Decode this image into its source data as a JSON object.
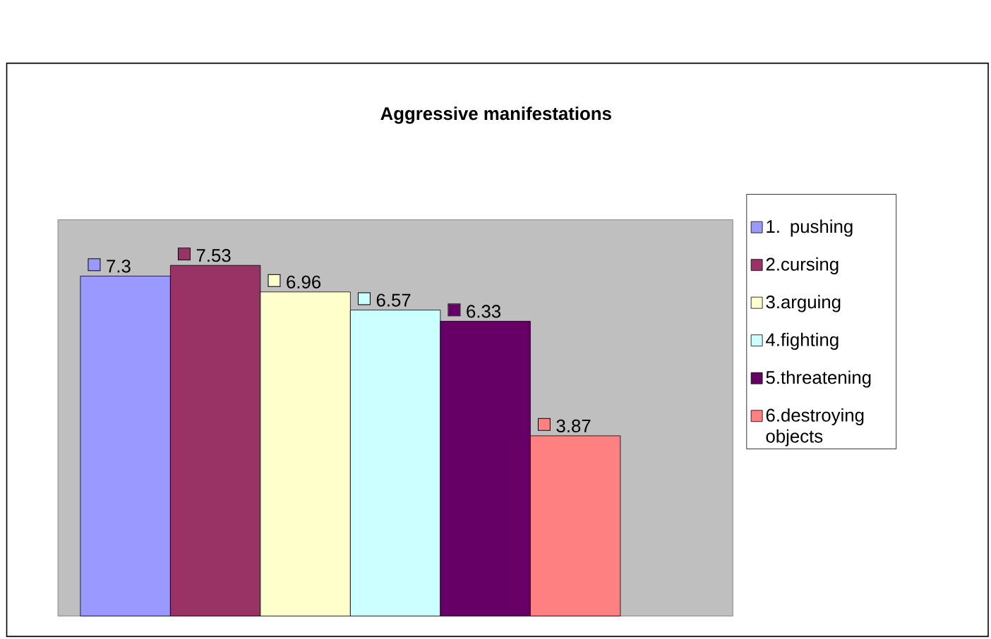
{
  "chart_data": {
    "type": "bar",
    "title": "Aggressive manifestations",
    "categories": [
      null
    ],
    "data_labels": true,
    "legend": "right",
    "series": [
      {
        "name": "1. pushing",
        "color": "#9999ff",
        "values": [
          7.3
        ]
      },
      {
        "name": "2.cursing",
        "color": "#993366",
        "values": [
          7.53
        ]
      },
      {
        "name": "3.arguing",
        "color": "#ffffcc",
        "values": [
          6.96
        ]
      },
      {
        "name": "4.fighting",
        "color": "#ccffff",
        "values": [
          6.57
        ]
      },
      {
        "name": "5.threatening",
        "color": "#660066",
        "values": [
          6.33
        ]
      },
      {
        "name": "6.destroying objects",
        "color": "#ff8080",
        "values": [
          3.87
        ]
      }
    ]
  }
}
